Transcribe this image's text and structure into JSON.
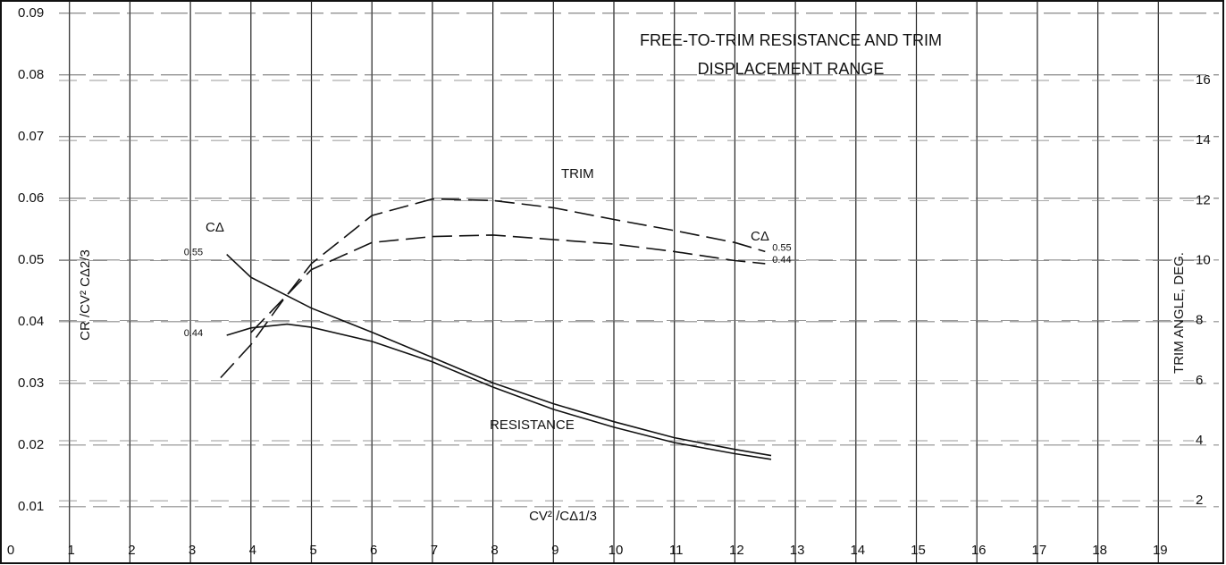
{
  "chart_data": {
    "type": "line",
    "title": [
      "FREE-TO-TRIM RESISTANCE AND TRIM",
      "DISPLACEMENT RANGE"
    ],
    "xlabel": "CV² /CΔ1/3",
    "ylabel": "CR /CV² CΔ2/3",
    "y2label": "TRIM ANGLE, DEG.",
    "annotations": [
      "TRIM",
      "RESISTANCE",
      "CΔ",
      "CΔ"
    ],
    "xlim": [
      0,
      20
    ],
    "ylim": [
      0.001,
      0.092
    ],
    "y2lim": [
      -0.05,
      18.65
    ],
    "xticks": [
      0,
      1,
      2,
      3,
      4,
      5,
      6,
      7,
      8,
      9,
      10,
      11,
      12,
      13,
      14,
      15,
      16,
      17,
      18,
      19
    ],
    "yticks": [
      0.01,
      0.02,
      0.03,
      0.04,
      0.05,
      0.06,
      0.07,
      0.08,
      0.09
    ],
    "y2ticks": [
      2,
      4,
      6,
      8,
      10,
      12,
      14,
      16
    ],
    "grid": true,
    "series": [
      {
        "name": "0.55",
        "color": "#111111",
        "axis": "y",
        "dash": false,
        "x": [
          3.6,
          4,
          5,
          6,
          7,
          8,
          9,
          10,
          11,
          12,
          12.6
        ],
        "values": [
          0.0509,
          0.0472,
          0.0422,
          0.0383,
          0.0342,
          0.0301,
          0.0267,
          0.0238,
          0.0212,
          0.0193,
          0.0183
        ]
      },
      {
        "name": "0.44",
        "color": "#111111",
        "axis": "y",
        "dash": false,
        "x": [
          3.6,
          4,
          4.6,
          5,
          6,
          7,
          8,
          9,
          10,
          11,
          12,
          12.6
        ],
        "values": [
          0.0378,
          0.039,
          0.0396,
          0.0391,
          0.0368,
          0.0335,
          0.0294,
          0.0258,
          0.0229,
          0.0204,
          0.0186,
          0.0177
        ]
      },
      {
        "name": "0.55",
        "color": "#111111",
        "axis": "y2",
        "dash": true,
        "x": [
          3.5,
          4,
          4.5,
          5,
          6,
          7,
          8,
          9,
          10,
          11,
          12,
          12.5
        ],
        "values": [
          6.1,
          7.2,
          8.6,
          9.9,
          11.5,
          12.05,
          12.0,
          11.76,
          11.37,
          11.0,
          10.6,
          10.3
        ]
      },
      {
        "name": "0.44",
        "color": "#111111",
        "axis": "y2",
        "dash": true,
        "x": [
          4,
          5,
          6,
          7,
          8,
          9,
          10,
          11,
          12,
          12.5
        ],
        "values": [
          7.6,
          9.7,
          10.6,
          10.8,
          10.85,
          10.7,
          10.55,
          10.3,
          10.0,
          9.9
        ]
      }
    ]
  }
}
